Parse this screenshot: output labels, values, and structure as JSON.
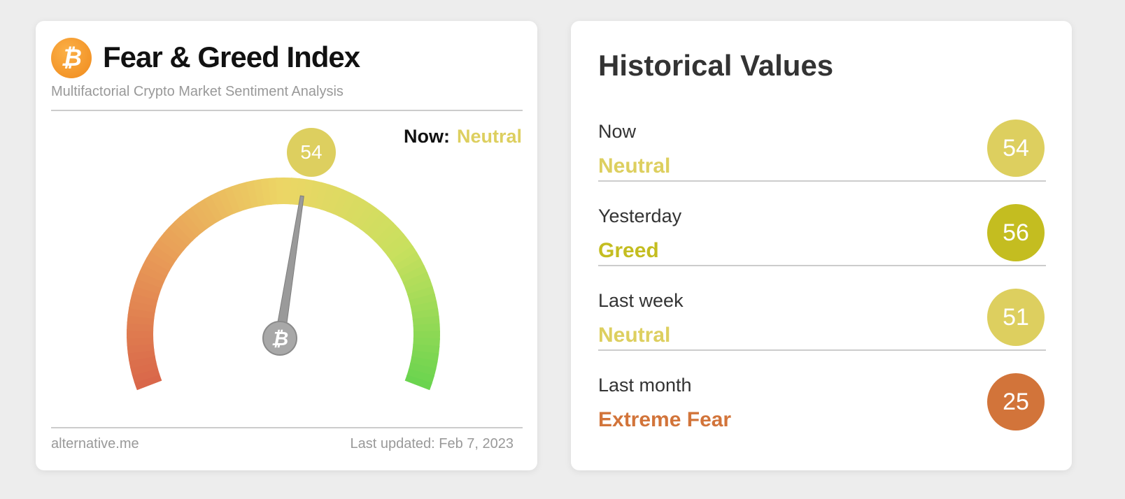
{
  "index_card": {
    "logo_icon": "bitcoin-icon",
    "title": "Fear & Greed Index",
    "subtitle": "Multifactorial Crypto Market Sentiment Analysis",
    "now_label": "Now:",
    "now_status": "Neutral",
    "value": "54",
    "gauge_value": 54,
    "gauge_range": [
      0,
      100
    ],
    "status_color": "#ddcf5f",
    "footer_source": "alternative.me",
    "footer_updated": "Last updated: Feb 7, 2023"
  },
  "historical": {
    "title": "Historical Values",
    "rows": [
      {
        "label": "Now",
        "status": "Neutral",
        "value": "54",
        "color": "#ddcf5f"
      },
      {
        "label": "Yesterday",
        "status": "Greed",
        "value": "56",
        "color": "#c4bd20"
      },
      {
        "label": "Last week",
        "status": "Neutral",
        "value": "51",
        "color": "#ddcf5f"
      },
      {
        "label": "Last month",
        "status": "Extreme Fear",
        "value": "25",
        "color": "#d2743a"
      }
    ]
  }
}
